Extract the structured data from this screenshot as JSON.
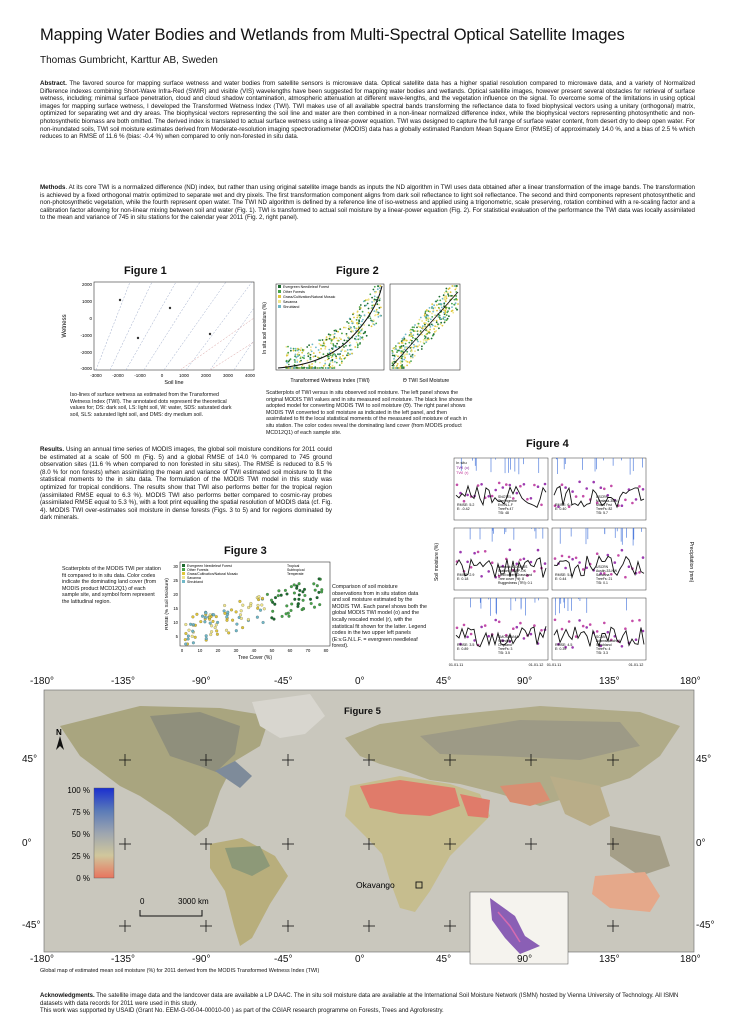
{
  "title": "Mapping Water Bodies and Wetlands from Multi-Spectral Optical Satellite Images",
  "author": "Thomas Gumbricht, Karttur AB, Sweden",
  "abstract": {
    "label": "Abstract.",
    "text": "The favored source for mapping surface wetness and water bodies from satellite sensors is microwave data. Optical satellite data has a higher spatial resolution compared to microwave data, and a variety of Normalized Difference indexes combining Short-Wave Infra-Red (SWIR) and visible (VIS) wavelengths have been suggested for mapping water bodies and wetlands. Optical satellite images, however present several obstacles for retrieval of surface wetness, including; minimal surface penetration, cloud and cloud shadow contamination, atmospheric attenuation at different wave-lengths, and the vegetation influence on the signal. To overcome some of the limitations in using optical images for mapping surface wetness, I developed the Transformed Wetness Index (TWI). TWI makes use of all available spectral bands transforming the reflectance data to fixed biophysical vectors using a unitary (orthogonal) matrix, optimized for separating wet and dry areas. The biophysical vectors representing the soil line and water are then combined in a non-linear normalized difference index, while the biophysical vectors representing photosynthetic and non-photosynthetic biomass are both omitted. The derived index is translated to actual surface wetness using a linear-power equation. TWI was designed to capture the full range of surface water content, from desert dry to deep open water. For non-inundated soils, TWI soil moisture estimates derived from Moderate-resolution imaging spectroradiometer (MODIS) data has a globally estimated Random Mean Square Error (RMSE) of approximately 14.0 %, and a bias of 2.5 % which reduces to an RMSE of 11.6 % (bias: -0.4 %) when compared to only non-forested in situ data."
  },
  "methods": {
    "label": "Methods",
    "text": ". At its core TWI is a normalized difference (ND) index, but rather than using original satellite image bands as inputs the ND algorithm in TWI uses data obtained after a linear transformation of the image bands. The transformation is achieved by a fixed orthogonal matrix optimized to separate wet and dry pixels. The first transformation component aligns from dark soil reflectance to light soil reflectance. The second and third components represent photosynthetic and non-photosynthetic vegetation, while the fourth represent open water. The TWI ND algorithm is defined by a reference line of iso-wetness and applied using a trigonometric, scale preserving, rotation combined with a re-scaling factor and a calibration factor allowing for non-linear mixing between soil and water (Fig. 1). TWI is transformed to actual soil moisture by a linear-power equation (Fig. 2). For statistical evaluation of the performance the TWI data was locally assimilated to the mean and variance of 745 in situ stations for the calendar year 2011 (Fig. 2, right panel)."
  },
  "results": {
    "label": "Results.",
    "text": " Using an annual time series of MODIS images, the global soil moisture conditions for 2011 could be estimated at a scale of 500 m (Fig. 5) and a global RMSE of 14.0 % compared to 745 ground observation sites (11.6 % when compared to non forested in situ sites). The RMSE is reduced to 8.5 % (8.0 % for non forests) when assimilating the mean and variance of TWI estimated soil moisture to fit the statistical moments to the in situ data. The formulation of the MODIS TWI model in this study was optimized for tropical conditions. The results show that TWI also performs better for the tropical region (assimilated RMSE equal to 6.3 %). MODIS TWI also performs better compared to cosmic-ray probes (assimilated RMSE equal to 5.3 %), with a foot print equalling the spatial resolution of MODIS data (cf. Fig. 4). MODIS TWI over-estimates soil moisture in dense forests (Figs. 3 to 5) and for regions dominated by dark minerals."
  },
  "fig1": {
    "title": "Figure 1",
    "ylabel": "Wetness",
    "xlabel": "Soil line",
    "xticks": [
      "-3000",
      "-2000",
      "-1000",
      "0",
      "1000",
      "2000",
      "3000",
      "4000"
    ],
    "yticks": [
      "2000",
      "1000",
      "0",
      "-1000",
      "-2000",
      "-3000"
    ],
    "caption": "Iso-lines of surface wetness as estimated from the Transformed Wetness Index (TWI). The annotated dots represent the theoretical values for; DS: dark soil, LS: light soil, W: water, SDS: saturated dark soil, SLS: saturated light soil, and DMS: dry medium soil."
  },
  "fig2": {
    "title": "Figure 2",
    "ylabel": "In situ soil moisture (%)",
    "xlabel_left": "Transformed Wetness Index (TWI)",
    "xlabel_right": "Θ TWI Soil Moisture",
    "legend": [
      "Evergreen Needleleaf Forest",
      "Other Forests",
      "Grass/Cultivation/Natural Mosaic",
      "Savanna",
      "Shrubland"
    ],
    "legend_colors": [
      "#1d6b2f",
      "#47a34a",
      "#e0c63a",
      "#f0e68c",
      "#6fb8c8"
    ],
    "caption": "Scatterplots of TWI versus in situ observed soil moisture. The left panel shows the original MODIS TWI values and in situ measured soil moisture. The black line shows the adopted model for converting MODIS TWI to soil moisture (Θ). The right panel shows MODIS TWI converted to soil moisture as indicated in the left panel, and then assimilated to fit the local statistical moments of the measured soil moisture of each in situ station. The color codes reveal the dominating land cover (from MODIS product MCD12Q1) of each sample site."
  },
  "fig3": {
    "title": "Figure 3",
    "ylabel": "RMSE (% Soil Moisture)",
    "xlabel": "Tree Cover (%)",
    "xticks": [
      "0",
      "10",
      "20",
      "30",
      "40",
      "50",
      "60",
      "70",
      "80"
    ],
    "yticks": [
      "5",
      "10",
      "15",
      "20",
      "25",
      "30"
    ],
    "legend": [
      "Evergreen Needleleaf Forest",
      "Other Forests",
      "Grass/Cultivation/Natural Mosaic",
      "Savanna",
      "Shrubland"
    ],
    "legend_right": [
      "Tropical",
      "Subtropical",
      "Temperate"
    ],
    "caption_left": "Scatterplots of the MODIS TWI per station fit compared to in situ data. Color codes indicate the dominating land cover (from MODIS product MCD12Q1) of each sample site, and symbol form represent the latitudinal region.",
    "caption_right": "Comparison of soil moisture observations from in situ station data and soil moisture estimated by the MODIS TWI. Each panel shows both the global MODIS TWI model (o) and the locally rescaled model (r), with the statistical fit shown for the latter. Legend codes in the two upper left panels (E:v.G.N.L.F. = evergreen needleleaf forest)."
  },
  "fig4": {
    "title": "Figure 4",
    "ylabel": "Soil moisture (%)",
    "ylabel_right": "Precipitation (mm)",
    "legend": [
      "In situ",
      "TWI (o)",
      "TWI (r)"
    ],
    "xticks": [
      "01.01.11",
      "01.01.12"
    ],
    "panels": [
      {
        "stats": "RMSE: 5.2\nE: -0.42",
        "info": "SNOTEL\nSterlingmine\nEvGN.L.F\nTreeFs 47\nTSI: 48"
      },
      {
        "stats": "RMSE: 6.4\nE: 0.40",
        "info": "USCRN\nMontana-35.N\nMixed Frst\nTreeFs: 82\nTSI: 5.7"
      },
      {
        "stats": "RMSE: 2.9\nE: 0.18",
        "info": "Network: COSMOS\nStation: SMAP-OK\nLand cover: Grassland\nTree cover (%): 8\nRuggedness (TRI): 0.1"
      },
      {
        "stats": "RMSE: 5.8\nE: 0.44",
        "info": "USCRN\nAustin-33-NW\nSavanna\nTreeFs: 21\nTSI: 0.1"
      },
      {
        "stats": "RMSE: 3.5\nE: 0.89",
        "info": "SMOSMANIA\nVillevielle\nCropland\nTreeFs: 3\nTSI: 3.5"
      },
      {
        "stats": "RMSE: 4.5\nE: 0.39",
        "info": "SCAN\nAdamsRanch#1\nShrubland\nTreeFs: 4\nTSI: 3.3"
      }
    ]
  },
  "fig5": {
    "title": "Figure 5",
    "top_lon": [
      "-180°",
      "-135°",
      "-90°",
      "-45°",
      "0°",
      "45°",
      "90°",
      "135°",
      "180°"
    ],
    "bottom_lon": [
      "-180°",
      "-135°",
      "-90°",
      "-45°",
      "0°",
      "45°",
      "90°",
      "135°",
      "180°"
    ],
    "left_lat": [
      "45°",
      "0°",
      "-45°"
    ],
    "right_lat": [
      "45°",
      "0°",
      "-45°"
    ],
    "north": "N",
    "legend": [
      "100 %",
      "75 %",
      "50 %",
      "25 %",
      "0 %"
    ],
    "scale_zero": "0",
    "scale_len": "3000 km",
    "okavango": "Okavango",
    "caption": "Global map of estimated mean soil moisture (%) for 2011 derived from the MODIS Transformed Wetness Index (TWI)"
  },
  "ack": {
    "label": "Acknowledgments.",
    "text": " The satellite image data and the landcover data are available a LP DAAC. The in situ soil moisture data are available at the International Soil Moisture Network (ISMN) hosted by Vienna University of Technology. All ISMN datasets with data records for 2011 were used in this study.",
    "text2": "This work was supported by USAID (Grant No. EEM-G-00-04-00010-00 ) as part of the CGIAR research programme on Forests, Trees and Agroforestry."
  }
}
